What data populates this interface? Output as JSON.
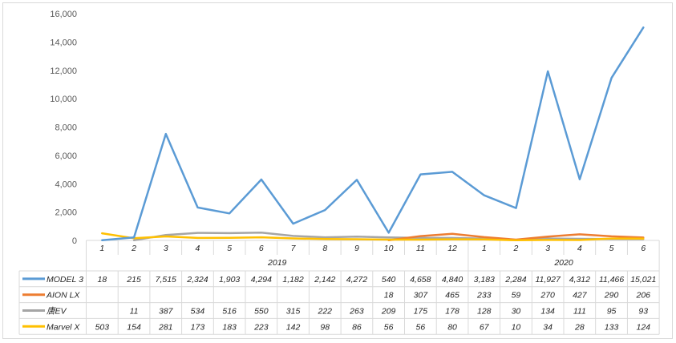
{
  "chart_data": {
    "type": "line",
    "ylim": [
      0,
      16000
    ],
    "yticks": [
      "0",
      "2,000",
      "4,000",
      "6,000",
      "8,000",
      "10,000",
      "12,000",
      "14,000",
      "16,000"
    ],
    "grid": false,
    "legend": "data-table",
    "groups": [
      {
        "label": "2019",
        "months": [
          "1",
          "2",
          "3",
          "4",
          "5",
          "6",
          "7",
          "8",
          "9",
          "10",
          "11",
          "12"
        ]
      },
      {
        "label": "2020",
        "months": [
          "1",
          "2",
          "3",
          "4",
          "5",
          "6"
        ]
      }
    ],
    "series": [
      {
        "name": "MODEL 3",
        "color": "#5b9bd5",
        "values": [
          18,
          215,
          7515,
          2324,
          1903,
          4294,
          1182,
          2142,
          4272,
          540,
          4658,
          4840,
          3183,
          2284,
          11927,
          4312,
          11466,
          15021
        ],
        "labels": [
          "18",
          "215",
          "7,515",
          "2,324",
          "1,903",
          "4,294",
          "1,182",
          "2,142",
          "4,272",
          "540",
          "4,658",
          "4,840",
          "3,183",
          "2,284",
          "11,927",
          "4,312",
          "11,466",
          "15,021"
        ]
      },
      {
        "name": "AION LX",
        "color": "#ed7d31",
        "values": [
          null,
          null,
          null,
          null,
          null,
          null,
          null,
          null,
          null,
          18,
          307,
          465,
          233,
          59,
          270,
          427,
          290,
          206
        ],
        "labels": [
          "",
          "",
          "",
          "",
          "",
          "",
          "",
          "",
          "",
          "18",
          "307",
          "465",
          "233",
          "59",
          "270",
          "427",
          "290",
          "206"
        ]
      },
      {
        "name": "唐EV",
        "color": "#a5a5a5",
        "values": [
          null,
          11,
          387,
          534,
          516,
          550,
          315,
          222,
          263,
          209,
          175,
          178,
          128,
          30,
          134,
          111,
          95,
          93
        ],
        "labels": [
          "",
          "11",
          "387",
          "534",
          "516",
          "550",
          "315",
          "222",
          "263",
          "209",
          "175",
          "178",
          "128",
          "30",
          "134",
          "111",
          "95",
          "93"
        ]
      },
      {
        "name": "Marvel X",
        "color": "#ffc000",
        "values": [
          503,
          154,
          281,
          173,
          183,
          223,
          142,
          98,
          86,
          56,
          56,
          80,
          67,
          10,
          34,
          28,
          133,
          124
        ],
        "labels": [
          "503",
          "154",
          "281",
          "173",
          "183",
          "223",
          "142",
          "98",
          "86",
          "56",
          "56",
          "80",
          "67",
          "10",
          "34",
          "28",
          "133",
          "124"
        ]
      }
    ]
  }
}
